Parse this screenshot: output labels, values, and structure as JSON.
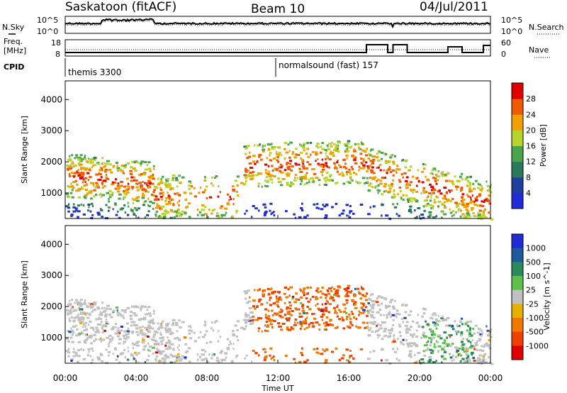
{
  "header": {
    "station": "Saskatoon (fitACF)",
    "beam": "Beam 10",
    "date": "04/Jul/2011"
  },
  "side_labels": {
    "nsky": "N.Sky",
    "nsearch": "N.Search",
    "freq_top": "Freq.",
    "freq_unit": "[MHz]",
    "nave": "Nave",
    "cpid": "CPID"
  },
  "noise_panel": {
    "left_ticks": [
      "10^5",
      "10^0"
    ],
    "right_ticks": [
      "10^5",
      "10^0"
    ]
  },
  "freq_panel": {
    "left_ticks": [
      "18",
      "8"
    ],
    "right_ticks": [
      "60",
      "0"
    ]
  },
  "cpid_labels": [
    "themis 3300",
    "normalsound (fast) 157"
  ],
  "colors": {
    "power": [
      "#1f2bd6",
      "#1e3f9e",
      "#2a7a5a",
      "#4aa54a",
      "#b8d42a",
      "#f0a000",
      "#f05a00",
      "#e00000"
    ],
    "velocity": [
      "#1f2bd6",
      "#1e5a9e",
      "#2a8a5a",
      "#5cc04a",
      "#c0c0c0",
      "#e8b000",
      "#f07800",
      "#f04000",
      "#e00000"
    ]
  },
  "chart_data": [
    {
      "type": "heatmap",
      "ylabel": "Slant Range [km]",
      "ylim": [
        180,
        4600
      ],
      "y_ticks": [
        "1000",
        "2000",
        "3000",
        "4000"
      ],
      "x_ticks": [
        "00:00",
        "04:00",
        "08:00",
        "12:00",
        "16:00",
        "20:00",
        "00:00"
      ],
      "colorbar_label": "Power [dB]",
      "colorbar_ticks": [
        "4",
        "8",
        "12",
        "16",
        "20",
        "24",
        "28"
      ]
    },
    {
      "type": "heatmap",
      "ylabel": "Slant Range [km]",
      "ylim": [
        180,
        4600
      ],
      "xlabel": "Time UT",
      "y_ticks": [
        "1000",
        "2000",
        "3000",
        "4000"
      ],
      "x_ticks": [
        "00:00",
        "04:00",
        "08:00",
        "12:00",
        "16:00",
        "20:00",
        "00:00"
      ],
      "colorbar_label": "Velocity [m s^-1]",
      "colorbar_ticks": [
        "1000",
        "500",
        "100",
        "25",
        "-25",
        "-100",
        "-500",
        "-1000"
      ]
    }
  ]
}
